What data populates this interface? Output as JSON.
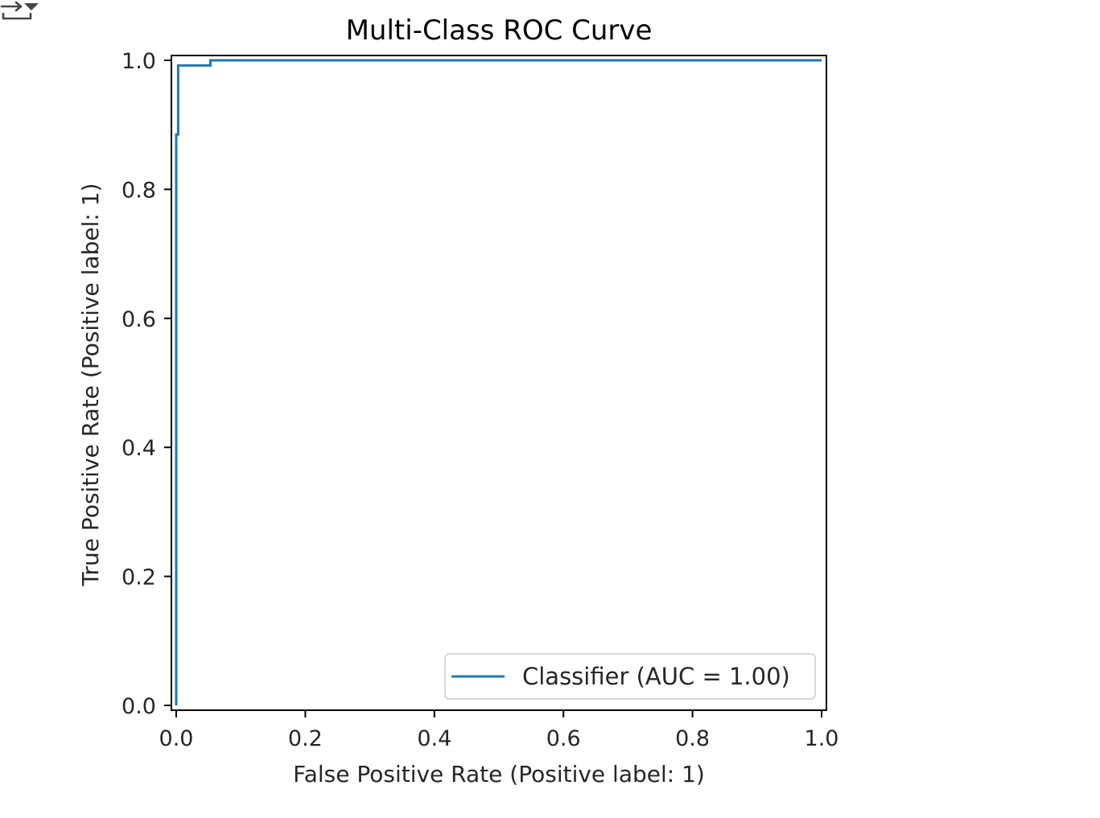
{
  "output_toggle": {
    "icon": "output-collapse-icon",
    "color": "#444746"
  },
  "chart_data": {
    "type": "line",
    "title": "Multi-Class ROC Curve",
    "xlabel": "False Positive Rate (Positive label: 1)",
    "ylabel": "True Positive Rate (Positive label: 1)",
    "xlim": [
      0.0,
      1.0
    ],
    "ylim": [
      0.0,
      1.0
    ],
    "xticks": [
      "0.0",
      "0.2",
      "0.4",
      "0.6",
      "0.8",
      "1.0"
    ],
    "yticks": [
      "0.0",
      "0.2",
      "0.4",
      "0.6",
      "0.8",
      "1.0"
    ],
    "grid": false,
    "legend_position": "lower-right",
    "series": [
      {
        "name": "Classifier (AUC = 1.00)",
        "color": "#1f77b4",
        "x": [
          0.0,
          0.0,
          0.003,
          0.003,
          0.053,
          0.053,
          1.0
        ],
        "y": [
          0.0,
          0.885,
          0.885,
          0.992,
          0.992,
          1.0,
          1.0
        ]
      }
    ]
  }
}
